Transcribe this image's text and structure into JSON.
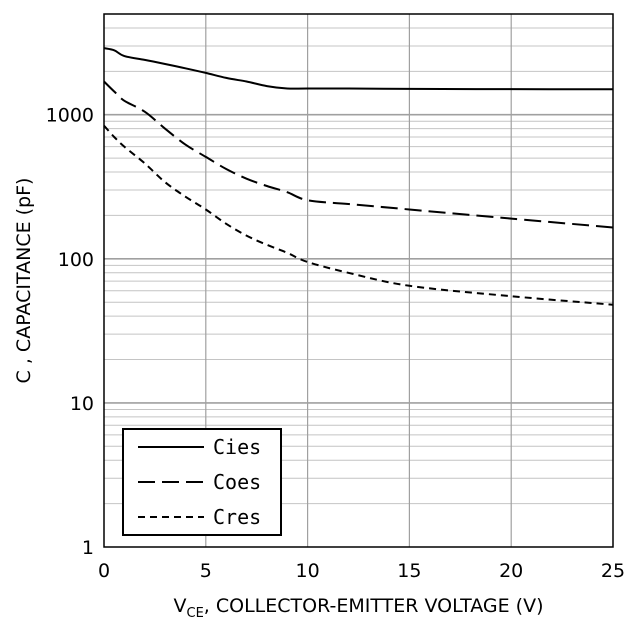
{
  "chart_data": {
    "type": "line",
    "title": "",
    "xlabel": {
      "prefix": "V",
      "sub": "CE",
      "rest": ", COLLECTOR-EMITTER VOLTAGE (V)"
    },
    "ylabel": "C , CAPACITANCE (pF)",
    "xlim": [
      0,
      25
    ],
    "ylim": [
      1,
      5000
    ],
    "yscale": "log",
    "grid": true,
    "legend_position": "bottom-left",
    "x_ticks": [
      "0",
      "5",
      "10",
      "15",
      "20",
      "25"
    ],
    "y_ticks": [
      "1",
      "10",
      "100",
      "1000"
    ],
    "series": [
      {
        "name": "Cies",
        "dash": "solid",
        "x": [
          0,
          0.5,
          1,
          2,
          3,
          4,
          5,
          6,
          7,
          8,
          9,
          10,
          12,
          15,
          20,
          25
        ],
        "y": [
          2900,
          2800,
          2550,
          2400,
          2250,
          2100,
          1950,
          1800,
          1700,
          1580,
          1520,
          1520,
          1520,
          1510,
          1505,
          1500
        ]
      },
      {
        "name": "Coes",
        "dash": "long-dash",
        "x": [
          0,
          0.5,
          1,
          2,
          3,
          4,
          5,
          6,
          7,
          8,
          9,
          10,
          12,
          15,
          20,
          25
        ],
        "y": [
          1700,
          1450,
          1250,
          1050,
          800,
          620,
          510,
          420,
          360,
          320,
          290,
          255,
          240,
          220,
          190,
          165
        ]
      },
      {
        "name": "Cres",
        "dash": "short-dash",
        "x": [
          0,
          0.5,
          1,
          2,
          3,
          4,
          5,
          6,
          7,
          8,
          9,
          10,
          12,
          15,
          20,
          25
        ],
        "y": [
          840,
          700,
          600,
          460,
          340,
          270,
          220,
          175,
          145,
          125,
          110,
          95,
          80,
          65,
          55,
          48
        ]
      }
    ]
  }
}
